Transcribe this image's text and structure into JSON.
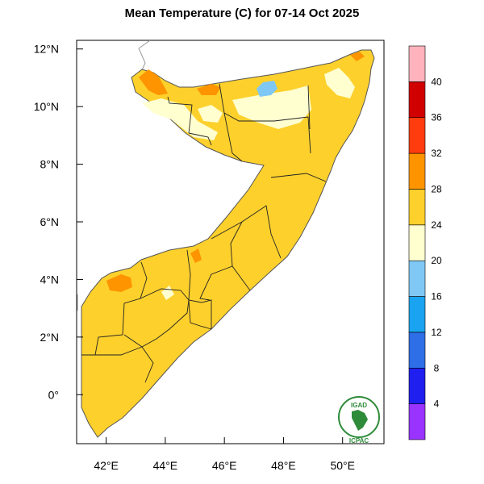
{
  "title": "Mean Temperature (C) for 07-14 Oct 2025",
  "map": {
    "lon_range": [
      41.0,
      51.4
    ],
    "lat_range": [
      -1.7,
      12.3
    ],
    "lon_ticks": [
      {
        "value": 42,
        "label": "42°E"
      },
      {
        "value": 44,
        "label": "44°E"
      },
      {
        "value": 46,
        "label": "46°E"
      },
      {
        "value": 48,
        "label": "48°E"
      },
      {
        "value": 50,
        "label": "50°E"
      }
    ],
    "lat_ticks": [
      {
        "value": 12,
        "label": "12°N"
      },
      {
        "value": 10,
        "label": "10°N"
      },
      {
        "value": 8,
        "label": "8°N"
      },
      {
        "value": 6,
        "label": "6°N"
      },
      {
        "value": 4,
        "label": "4°N"
      },
      {
        "value": 2,
        "label": "2°N"
      },
      {
        "value": 0,
        "label": "0°"
      }
    ]
  },
  "colorbar": {
    "bins": [
      {
        "color": "#9933ff"
      },
      {
        "color": "#1f1ff0"
      },
      {
        "color": "#2e6fe8"
      },
      {
        "color": "#1aa3f0"
      },
      {
        "color": "#7fc8f5"
      },
      {
        "color": "#ffffd0"
      },
      {
        "color": "#fdd02c"
      },
      {
        "color": "#fd9400"
      },
      {
        "color": "#ff3c0e"
      },
      {
        "color": "#d10000"
      },
      {
        "color": "#ffb3bd"
      }
    ],
    "labels": [
      "4",
      "8",
      "12",
      "16",
      "20",
      "24",
      "28",
      "32",
      "36",
      "40"
    ]
  },
  "logo": {
    "top_text": "IGAD",
    "bottom_text": "ICPAC"
  }
}
